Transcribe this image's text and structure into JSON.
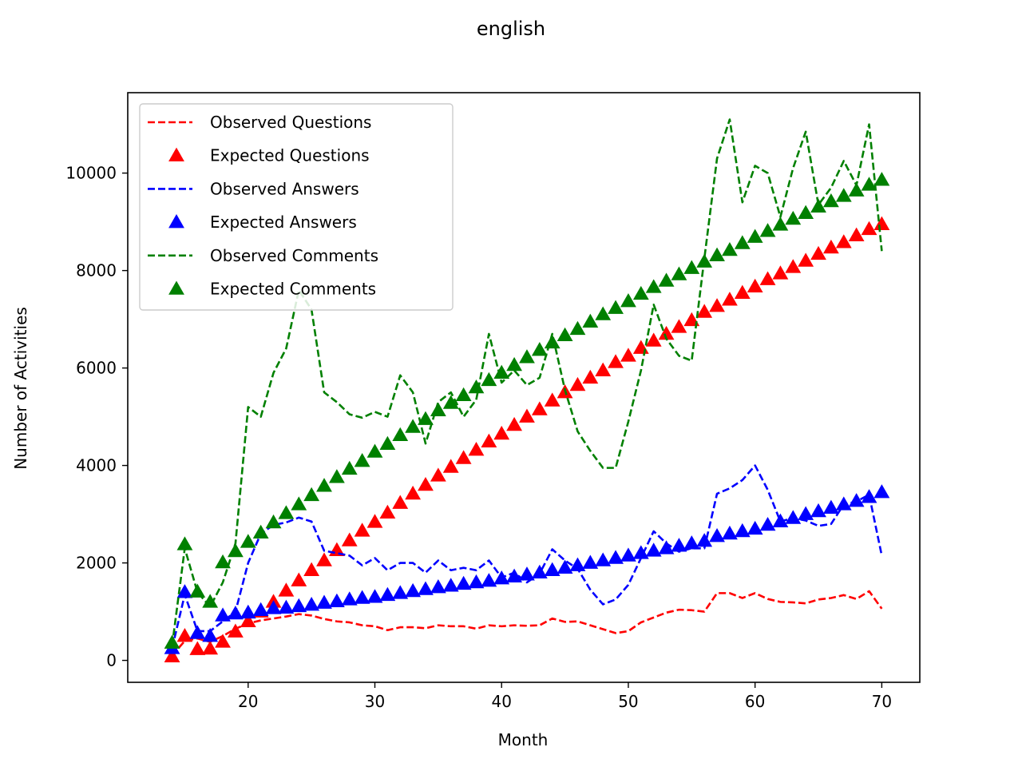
{
  "chart_data": {
    "type": "line",
    "title": "english",
    "xlabel": "Month",
    "ylabel": "Number of Activities",
    "xlim": [
      10.5,
      73.0
    ],
    "ylim": [
      -450,
      11650
    ],
    "xticks": [
      20,
      30,
      40,
      50,
      60,
      70
    ],
    "yticks": [
      0,
      2000,
      4000,
      6000,
      8000,
      10000
    ],
    "legend_position": "upper-left",
    "grid": false,
    "series": [
      {
        "name": "Observed Questions",
        "style": "dashed",
        "color": "#ff0000",
        "x": [
          14,
          15,
          16,
          17,
          18,
          19,
          20,
          21,
          22,
          23,
          24,
          25,
          26,
          27,
          28,
          29,
          30,
          31,
          32,
          33,
          34,
          35,
          36,
          37,
          38,
          39,
          40,
          41,
          42,
          43,
          44,
          45,
          46,
          47,
          48,
          49,
          50,
          51,
          52,
          53,
          54,
          55,
          56,
          57,
          58,
          59,
          60,
          61,
          62,
          63,
          64,
          65,
          66,
          67,
          68,
          69,
          70
        ],
        "y": [
          100,
          400,
          450,
          380,
          500,
          650,
          760,
          820,
          860,
          900,
          950,
          920,
          850,
          800,
          780,
          720,
          700,
          620,
          680,
          680,
          660,
          720,
          700,
          700,
          650,
          720,
          700,
          720,
          710,
          720,
          860,
          790,
          800,
          720,
          640,
          560,
          600,
          780,
          880,
          980,
          1040,
          1030,
          1000,
          1380,
          1380,
          1280,
          1380,
          1260,
          1200,
          1190,
          1170,
          1250,
          1280,
          1340,
          1260,
          1420,
          1060
        ]
      },
      {
        "name": "Expected Questions",
        "style": "triangle",
        "color": "#ff0000",
        "x": [
          14,
          15,
          16,
          17,
          18,
          19,
          20,
          21,
          22,
          23,
          24,
          25,
          26,
          27,
          28,
          29,
          30,
          31,
          32,
          33,
          34,
          35,
          36,
          37,
          38,
          39,
          40,
          41,
          42,
          43,
          44,
          45,
          46,
          47,
          48,
          49,
          50,
          51,
          52,
          53,
          54,
          55,
          56,
          57,
          58,
          59,
          60,
          61,
          62,
          63,
          64,
          65,
          66,
          67,
          68,
          69,
          70
        ],
        "y": [
          80,
          500,
          230,
          240,
          380,
          590,
          800,
          1000,
          1200,
          1430,
          1640,
          1850,
          2050,
          2260,
          2460,
          2660,
          2840,
          3030,
          3230,
          3420,
          3600,
          3790,
          3970,
          4150,
          4320,
          4490,
          4650,
          4830,
          5000,
          5150,
          5330,
          5500,
          5650,
          5800,
          5950,
          6120,
          6250,
          6410,
          6560,
          6700,
          6840,
          6980,
          7150,
          7270,
          7400,
          7540,
          7670,
          7820,
          7940,
          8070,
          8200,
          8340,
          8470,
          8580,
          8720,
          8850,
          8950
        ]
      },
      {
        "name": "Observed Answers",
        "style": "dashed",
        "color": "#0000ff",
        "x": [
          14,
          15,
          16,
          17,
          18,
          19,
          20,
          21,
          22,
          23,
          24,
          25,
          26,
          27,
          28,
          29,
          30,
          31,
          32,
          33,
          34,
          35,
          36,
          37,
          38,
          39,
          40,
          41,
          42,
          43,
          44,
          45,
          46,
          47,
          48,
          49,
          50,
          51,
          52,
          53,
          54,
          55,
          56,
          57,
          58,
          59,
          60,
          61,
          62,
          63,
          64,
          65,
          66,
          67,
          68,
          69,
          70
        ],
        "y": [
          250,
          1350,
          600,
          600,
          800,
          1000,
          2000,
          2600,
          2780,
          2830,
          2930,
          2850,
          2250,
          2200,
          2150,
          1950,
          2100,
          1850,
          2000,
          2000,
          1800,
          2050,
          1850,
          1900,
          1850,
          2050,
          1700,
          1800,
          1600,
          1780,
          2280,
          2050,
          1880,
          1450,
          1150,
          1250,
          1550,
          2100,
          2650,
          2400,
          2230,
          2300,
          2300,
          3420,
          3530,
          3700,
          4000,
          3500,
          2850,
          2920,
          2870,
          2760,
          2800,
          3200,
          3260,
          3400,
          2150
        ]
      },
      {
        "name": "Expected Answers",
        "style": "triangle",
        "color": "#0000ff",
        "x": [
          14,
          15,
          16,
          17,
          18,
          19,
          20,
          21,
          22,
          23,
          24,
          25,
          26,
          27,
          28,
          29,
          30,
          31,
          32,
          33,
          34,
          35,
          36,
          37,
          38,
          39,
          40,
          41,
          42,
          43,
          44,
          45,
          46,
          47,
          48,
          49,
          50,
          51,
          52,
          53,
          54,
          55,
          56,
          57,
          58,
          59,
          60,
          61,
          62,
          63,
          64,
          65,
          66,
          67,
          68,
          69,
          70
        ],
        "y": [
          250,
          1400,
          560,
          500,
          920,
          960,
          980,
          1030,
          1070,
          1080,
          1110,
          1140,
          1180,
          1210,
          1250,
          1280,
          1300,
          1340,
          1380,
          1420,
          1460,
          1500,
          1530,
          1570,
          1600,
          1630,
          1680,
          1720,
          1760,
          1800,
          1850,
          1900,
          1950,
          2000,
          2050,
          2100,
          2150,
          2200,
          2250,
          2300,
          2350,
          2400,
          2450,
          2550,
          2600,
          2650,
          2700,
          2780,
          2850,
          2920,
          3000,
          3060,
          3130,
          3200,
          3270,
          3350,
          3450
        ]
      },
      {
        "name": "Observed Comments",
        "style": "dashed",
        "color": "#008000",
        "x": [
          14,
          15,
          16,
          17,
          18,
          19,
          20,
          21,
          22,
          23,
          24,
          25,
          26,
          27,
          28,
          29,
          30,
          31,
          32,
          33,
          34,
          35,
          36,
          37,
          38,
          39,
          40,
          41,
          42,
          43,
          44,
          45,
          46,
          47,
          48,
          49,
          50,
          51,
          52,
          53,
          54,
          55,
          56,
          57,
          58,
          59,
          60,
          61,
          62,
          63,
          64,
          65,
          66,
          67,
          68,
          69,
          70
        ],
        "y": [
          300,
          2300,
          1400,
          1100,
          1600,
          2400,
          5200,
          5000,
          5900,
          6400,
          7600,
          7200,
          5500,
          5300,
          5050,
          4980,
          5100,
          5000,
          5850,
          5500,
          4450,
          5300,
          5500,
          5000,
          5350,
          6700,
          5700,
          5950,
          5650,
          5800,
          6700,
          5550,
          4700,
          4300,
          3950,
          3950,
          4900,
          5950,
          7300,
          6600,
          6250,
          6150,
          8250,
          10300,
          11100,
          9400,
          10150,
          10000,
          9100,
          10100,
          10850,
          9350,
          9700,
          10250,
          9750,
          11000,
          8400
        ]
      },
      {
        "name": "Expected Comments",
        "style": "triangle",
        "color": "#008000",
        "x": [
          14,
          15,
          16,
          17,
          18,
          19,
          20,
          21,
          22,
          23,
          24,
          25,
          26,
          27,
          28,
          29,
          30,
          31,
          32,
          33,
          34,
          35,
          36,
          37,
          38,
          39,
          40,
          41,
          42,
          43,
          44,
          45,
          46,
          47,
          48,
          49,
          50,
          51,
          52,
          53,
          54,
          55,
          56,
          57,
          58,
          59,
          60,
          61,
          62,
          63,
          64,
          65,
          66,
          67,
          68,
          69,
          70
        ],
        "y": [
          360,
          2380,
          1410,
          1200,
          2010,
          2240,
          2430,
          2620,
          2830,
          3020,
          3200,
          3390,
          3580,
          3760,
          3930,
          4090,
          4280,
          4440,
          4620,
          4790,
          4950,
          5130,
          5280,
          5440,
          5600,
          5750,
          5900,
          6060,
          6220,
          6370,
          6520,
          6670,
          6800,
          6950,
          7100,
          7230,
          7370,
          7520,
          7660,
          7790,
          7920,
          8050,
          8180,
          8310,
          8420,
          8560,
          8690,
          8810,
          8940,
          9060,
          9180,
          9310,
          9420,
          9530,
          9640,
          9760,
          9860
        ]
      }
    ]
  }
}
